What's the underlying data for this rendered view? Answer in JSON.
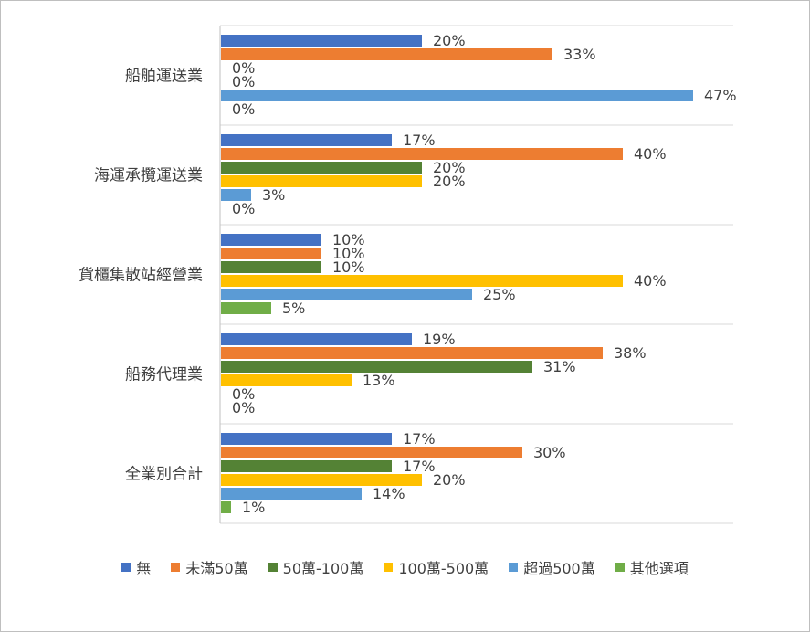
{
  "chart_data": {
    "type": "bar",
    "orientation": "horizontal",
    "categories": [
      "船舶運送業",
      "海運承攬運送業",
      "貨櫃集散站經營業",
      "船務代理業",
      "全業別合計"
    ],
    "series": [
      {
        "name": "無",
        "color": "#4472C4",
        "values": [
          20,
          17,
          10,
          19,
          17
        ],
        "labels": [
          "20%",
          "17%",
          "10%",
          "19%",
          "17%"
        ]
      },
      {
        "name": "未滿50萬",
        "color": "#ED7D31",
        "values": [
          33,
          40,
          10,
          38,
          30
        ],
        "labels": [
          "33%",
          "40%",
          "10%",
          "38%",
          "30%"
        ]
      },
      {
        "name": "50萬-100萬",
        "color": "#548235",
        "values": [
          0,
          20,
          10,
          31,
          17
        ],
        "labels": [
          "0%",
          "20%",
          "10%",
          "31%",
          "17%"
        ]
      },
      {
        "name": "100萬-500萬",
        "color": "#FFC000",
        "values": [
          0,
          20,
          40,
          13,
          20
        ],
        "labels": [
          "0%",
          "20%",
          "40%",
          "13%",
          "20%"
        ]
      },
      {
        "name": "超過500萬",
        "color": "#5B9BD5",
        "values": [
          47,
          3,
          25,
          0,
          14
        ],
        "labels": [
          "47%",
          "3%",
          "25%",
          "0%",
          "14%"
        ]
      },
      {
        "name": "其他選項",
        "color": "#70AD47",
        "values": [
          0,
          0,
          5,
          0,
          1
        ],
        "labels": [
          "0%",
          "0%",
          "5%",
          "0%",
          "1%"
        ]
      }
    ],
    "xlim": [
      0,
      50
    ],
    "legend_position": "bottom"
  }
}
